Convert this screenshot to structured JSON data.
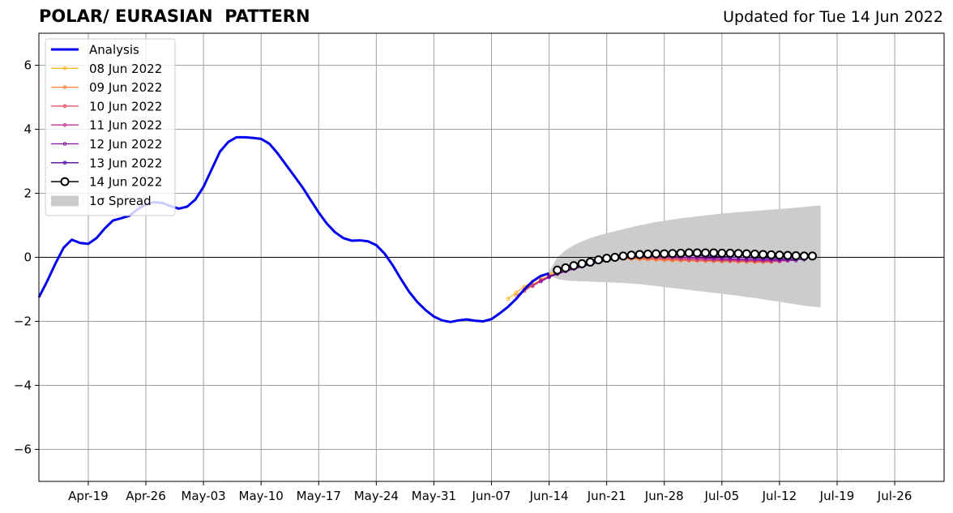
{
  "chart_data": {
    "type": "line",
    "title": "POLAR/ EURASIAN  PATTERN",
    "subtitle": "Updated for Tue 14 Jun 2022",
    "xlabel": "",
    "ylabel": "",
    "ylim": [
      -7,
      7
    ],
    "xlim": [
      "2022-04-13",
      "2022-08-01"
    ],
    "grid": true,
    "legend_position": "top-left",
    "x_tick_labels": [
      "Apr-19",
      "Apr-26",
      "May-03",
      "May-10",
      "May-17",
      "May-24",
      "May-31",
      "Jun-07",
      "Jun-14",
      "Jun-21",
      "Jun-28",
      "Jul-05",
      "Jul-12",
      "Jul-19",
      "Jul-26"
    ],
    "x_ticks": [
      "2022-04-19",
      "2022-04-26",
      "2022-05-03",
      "2022-05-10",
      "2022-05-17",
      "2022-05-24",
      "2022-05-31",
      "2022-06-07",
      "2022-06-14",
      "2022-06-21",
      "2022-06-28",
      "2022-07-05",
      "2022-07-12",
      "2022-07-19",
      "2022-07-26"
    ],
    "y_ticks": [
      -6,
      -4,
      -2,
      0,
      2,
      4,
      6
    ],
    "y_tick_labels": [
      "−6",
      "−4",
      "−2",
      "0",
      "2",
      "4",
      "6"
    ],
    "analysis": {
      "name": "Analysis",
      "color": "#0000ee",
      "x": [
        "2022-04-13",
        "2022-04-14",
        "2022-04-15",
        "2022-04-16",
        "2022-04-17",
        "2022-04-18",
        "2022-04-19",
        "2022-04-20",
        "2022-04-21",
        "2022-04-22",
        "2022-04-23",
        "2022-04-24",
        "2022-04-25",
        "2022-04-26",
        "2022-04-27",
        "2022-04-28",
        "2022-04-29",
        "2022-04-30",
        "2022-05-01",
        "2022-05-02",
        "2022-05-03",
        "2022-05-04",
        "2022-05-05",
        "2022-05-06",
        "2022-05-07",
        "2022-05-08",
        "2022-05-09",
        "2022-05-10",
        "2022-05-11",
        "2022-05-12",
        "2022-05-13",
        "2022-05-14",
        "2022-05-15",
        "2022-05-16",
        "2022-05-17",
        "2022-05-18",
        "2022-05-19",
        "2022-05-20",
        "2022-05-21",
        "2022-05-22",
        "2022-05-23",
        "2022-05-24",
        "2022-05-25",
        "2022-05-26",
        "2022-05-27",
        "2022-05-28",
        "2022-05-29",
        "2022-05-30",
        "2022-05-31",
        "2022-06-01",
        "2022-06-02",
        "2022-06-03",
        "2022-06-04",
        "2022-06-05",
        "2022-06-06",
        "2022-06-07",
        "2022-06-08",
        "2022-06-09",
        "2022-06-10",
        "2022-06-11",
        "2022-06-12",
        "2022-06-13",
        "2022-06-14"
      ],
      "y": [
        -1.25,
        -0.75,
        -0.2,
        0.3,
        0.55,
        0.45,
        0.42,
        0.6,
        0.9,
        1.15,
        1.22,
        1.3,
        1.5,
        1.65,
        1.72,
        1.7,
        1.6,
        1.52,
        1.58,
        1.8,
        2.2,
        2.75,
        3.3,
        3.6,
        3.75,
        3.75,
        3.73,
        3.7,
        3.55,
        3.25,
        2.9,
        2.55,
        2.2,
        1.8,
        1.4,
        1.05,
        0.78,
        0.6,
        0.52,
        0.53,
        0.5,
        0.38,
        0.12,
        -0.25,
        -0.68,
        -1.08,
        -1.4,
        -1.65,
        -1.85,
        -1.97,
        -2.02,
        -1.97,
        -1.94,
        -1.98,
        -2.0,
        -1.93,
        -1.75,
        -1.55,
        -1.3,
        -1.0,
        -0.75,
        -0.58,
        -0.5
      ]
    },
    "forecasts": [
      {
        "name": "08 Jun 2022",
        "color": "#fcb32a",
        "start": "2022-06-09",
        "y": [
          -1.3,
          -1.1,
          -0.92,
          -0.75,
          -0.62,
          -0.52,
          -0.45,
          -0.38,
          -0.3,
          -0.22,
          -0.15,
          -0.1,
          -0.06,
          -0.04,
          -0.03,
          -0.03,
          -0.04,
          -0.05,
          -0.06,
          -0.07,
          -0.08,
          -0.09,
          -0.1,
          -0.1,
          -0.11,
          -0.11,
          -0.12,
          -0.12,
          -0.13,
          -0.13,
          -0.14,
          -0.14
        ]
      },
      {
        "name": "09 Jun 2022",
        "color": "#f5813a",
        "start": "2022-06-10",
        "y": [
          -1.2,
          -1.02,
          -0.85,
          -0.7,
          -0.58,
          -0.48,
          -0.4,
          -0.32,
          -0.25,
          -0.18,
          -0.13,
          -0.09,
          -0.06,
          -0.05,
          -0.05,
          -0.06,
          -0.07,
          -0.08,
          -0.09,
          -0.1,
          -0.1,
          -0.11,
          -0.11,
          -0.12,
          -0.12,
          -0.13,
          -0.13,
          -0.14,
          -0.14,
          -0.15,
          -0.15,
          -0.15
        ]
      },
      {
        "name": "10 Jun 2022",
        "color": "#e2495b",
        "start": "2022-06-11",
        "y": [
          -1.05,
          -0.88,
          -0.72,
          -0.6,
          -0.5,
          -0.41,
          -0.33,
          -0.26,
          -0.19,
          -0.13,
          -0.08,
          -0.05,
          -0.03,
          -0.02,
          -0.02,
          -0.03,
          -0.04,
          -0.05,
          -0.06,
          -0.07,
          -0.08,
          -0.09,
          -0.09,
          -0.1,
          -0.1,
          -0.11,
          -0.11,
          -0.12,
          -0.12,
          -0.13,
          -0.13,
          -0.13
        ]
      },
      {
        "name": "11 Jun 2022",
        "color": "#bb3790",
        "start": "2022-06-12",
        "y": [
          -0.9,
          -0.75,
          -0.62,
          -0.52,
          -0.43,
          -0.35,
          -0.27,
          -0.2,
          -0.14,
          -0.09,
          -0.05,
          -0.02,
          0.0,
          0.01,
          0.01,
          0.0,
          -0.01,
          -0.02,
          -0.03,
          -0.04,
          -0.05,
          -0.06,
          -0.07,
          -0.08,
          -0.08,
          -0.09,
          -0.09,
          -0.1,
          -0.1,
          -0.11,
          -0.11,
          -0.11
        ]
      },
      {
        "name": "12 Jun 2022",
        "color": "#8b0aa5",
        "start": "2022-06-13",
        "y": [
          -0.75,
          -0.62,
          -0.52,
          -0.44,
          -0.36,
          -0.29,
          -0.22,
          -0.16,
          -0.1,
          -0.06,
          -0.02,
          0.01,
          0.03,
          0.04,
          0.04,
          0.03,
          0.02,
          0.01,
          0.0,
          -0.01,
          -0.02,
          -0.03,
          -0.04,
          -0.05,
          -0.06,
          -0.07,
          -0.07,
          -0.08,
          -0.08,
          -0.09,
          -0.09,
          -0.1
        ]
      },
      {
        "name": "13 Jun 2022",
        "color": "#50029c",
        "start": "2022-06-14",
        "y": [
          -0.6,
          -0.5,
          -0.42,
          -0.35,
          -0.28,
          -0.22,
          -0.16,
          -0.1,
          -0.05,
          -0.01,
          0.02,
          0.05,
          0.07,
          0.08,
          0.08,
          0.08,
          0.07,
          0.06,
          0.05,
          0.04,
          0.03,
          0.02,
          0.01,
          0.0,
          -0.01,
          -0.02,
          -0.03,
          -0.04,
          -0.05,
          -0.05,
          -0.06,
          -0.07
        ]
      }
    ],
    "current_forecast": {
      "name": "14 Jun 2022",
      "color": "#000000",
      "start": "2022-06-15",
      "y": [
        -0.4,
        -0.33,
        -0.26,
        -0.2,
        -0.15,
        -0.08,
        -0.03,
        0.0,
        0.04,
        0.07,
        0.09,
        0.1,
        0.11,
        0.11,
        0.12,
        0.13,
        0.14,
        0.14,
        0.14,
        0.14,
        0.13,
        0.13,
        0.12,
        0.11,
        0.1,
        0.09,
        0.08,
        0.07,
        0.06,
        0.05,
        0.04,
        0.04
      ]
    },
    "spread": {
      "name": "1σ Spread",
      "color": "#cccccc",
      "start": "2022-06-14",
      "upper": [
        -0.45,
        0.0,
        0.22,
        0.38,
        0.5,
        0.6,
        0.68,
        0.75,
        0.82,
        0.88,
        0.94,
        1.0,
        1.05,
        1.1,
        1.14,
        1.18,
        1.22,
        1.25,
        1.28,
        1.31,
        1.34,
        1.37,
        1.39,
        1.41,
        1.43,
        1.45,
        1.47,
        1.49,
        1.51,
        1.53,
        1.55,
        1.57,
        1.6,
        1.62
      ],
      "lower": [
        -0.55,
        -0.68,
        -0.72,
        -0.74,
        -0.75,
        -0.76,
        -0.77,
        -0.78,
        -0.79,
        -0.8,
        -0.82,
        -0.84,
        -0.87,
        -0.9,
        -0.93,
        -0.96,
        -0.99,
        -1.02,
        -1.05,
        -1.08,
        -1.11,
        -1.14,
        -1.17,
        -1.2,
        -1.24,
        -1.27,
        -1.31,
        -1.35,
        -1.39,
        -1.43,
        -1.47,
        -1.51,
        -1.54,
        -1.56
      ]
    }
  }
}
